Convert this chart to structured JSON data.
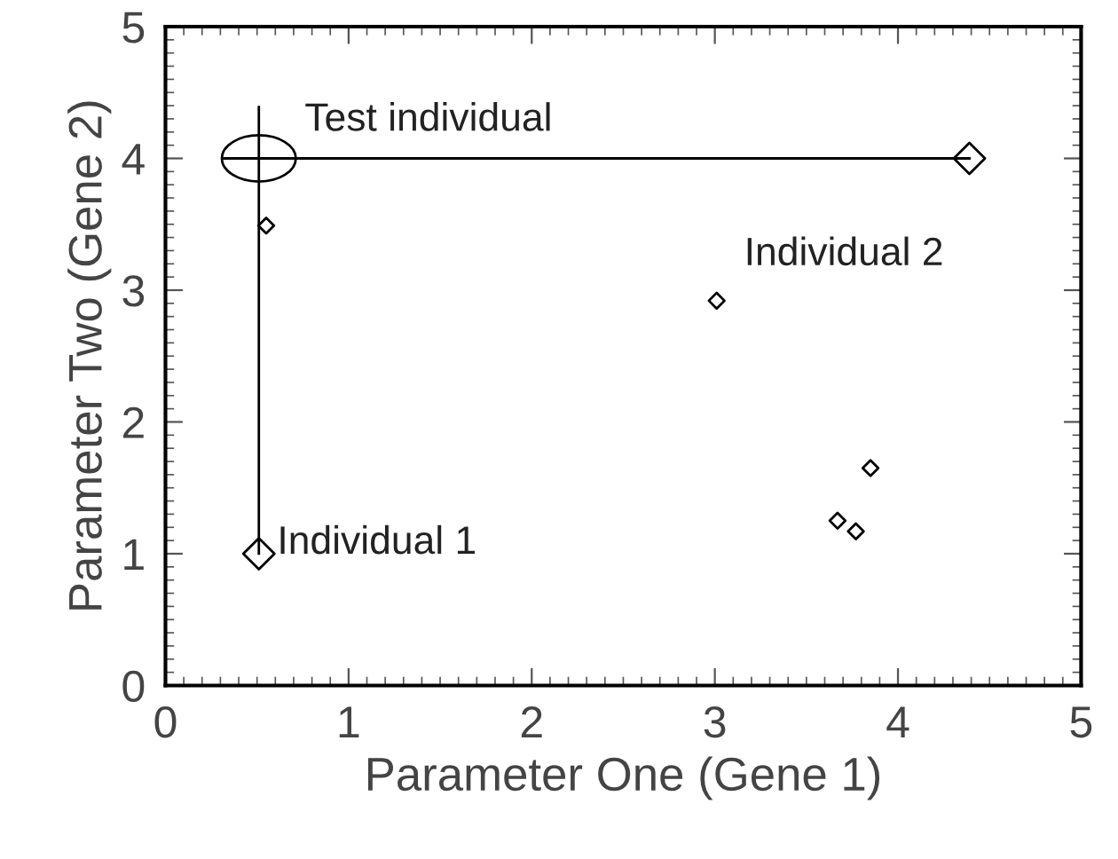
{
  "chart_data": {
    "type": "scatter",
    "xlabel": "Parameter One (Gene 1)",
    "ylabel": "Parameter Two (Gene 2)",
    "xlim": [
      0,
      5
    ],
    "ylim": [
      0,
      5
    ],
    "xticks": [
      0,
      1,
      2,
      3,
      4,
      5
    ],
    "yticks": [
      0,
      1,
      2,
      3,
      4,
      5
    ],
    "grid": false,
    "legend": false,
    "series": [
      {
        "type": "line",
        "color": "#000000",
        "x": [
          0.31,
          4.39
        ],
        "values": [
          4.0,
          4.0
        ],
        "marker": "none",
        "line_style": "solid"
      },
      {
        "type": "line",
        "color": "#000000",
        "x": [
          0.51,
          0.51
        ],
        "values": [
          4.39,
          1.0
        ],
        "marker": "none",
        "line_style": "solid"
      },
      {
        "color": "#000000",
        "x": [
          0.55,
          3.01,
          3.85,
          3.67,
          3.77
        ],
        "values": [
          3.49,
          2.92,
          1.65,
          1.25,
          1.17
        ],
        "marker": "diamond"
      },
      {
        "color": "#000000",
        "x": [
          0.51,
          4.39
        ],
        "values": [
          1.0,
          4.0
        ],
        "marker": "diamond"
      },
      {
        "color": "#000000",
        "x": [
          0.51
        ],
        "values": [
          4.0
        ],
        "marker": "circle"
      }
    ],
    "annotations": [
      "Test individual",
      "Individual 2",
      "Individual 1"
    ]
  }
}
